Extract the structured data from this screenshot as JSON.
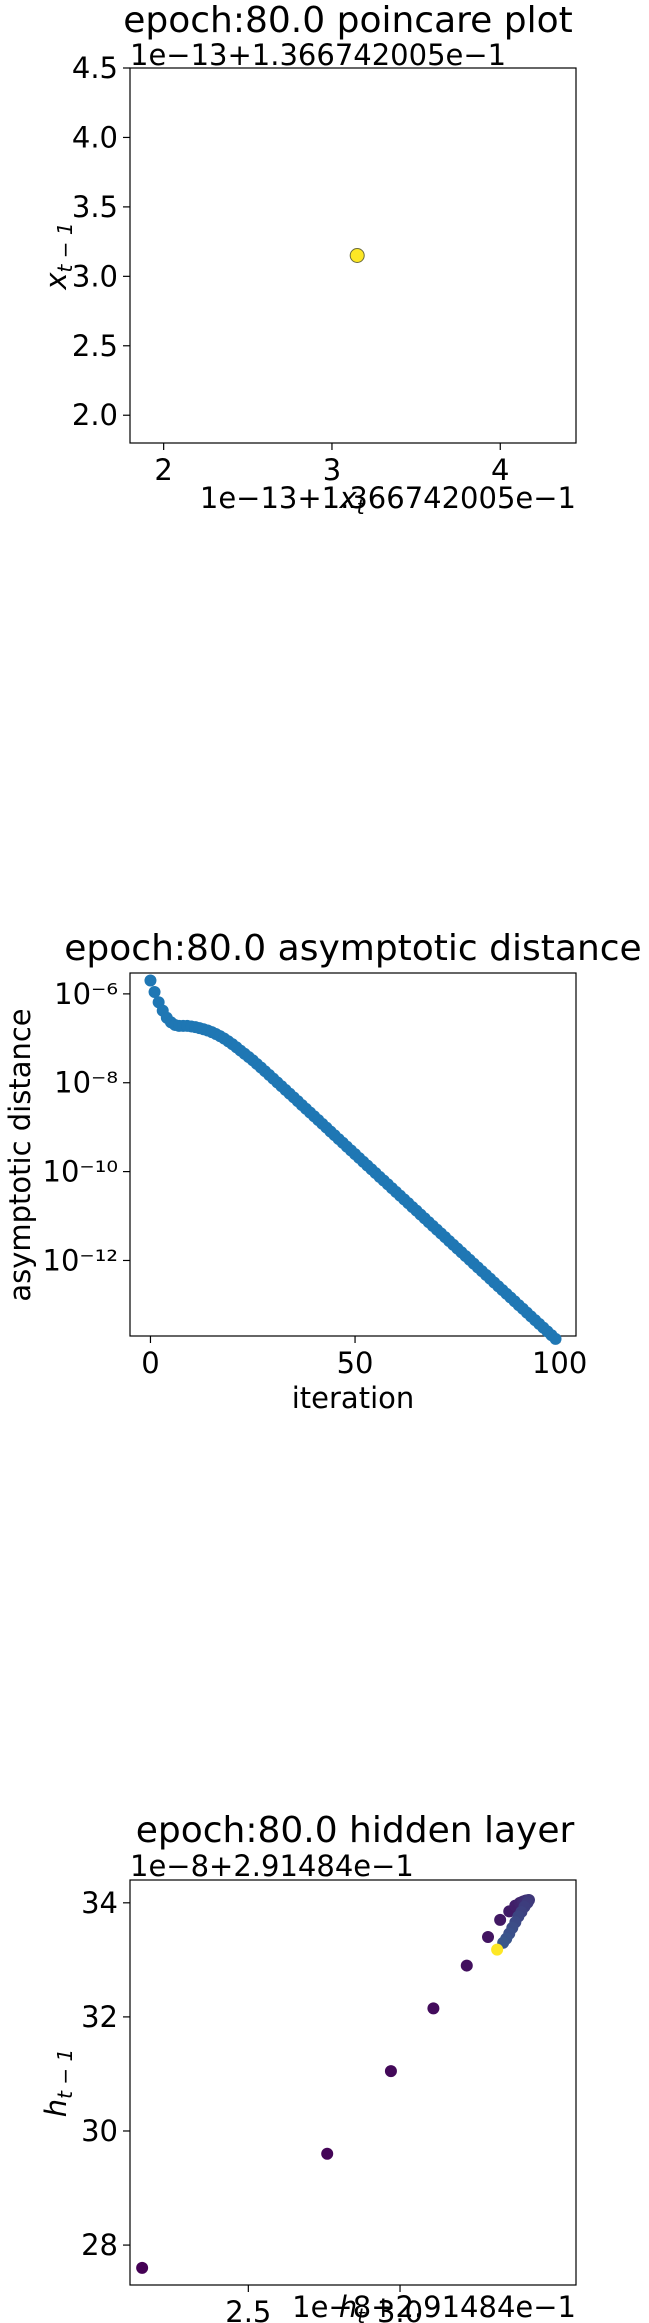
{
  "chart_data": [
    {
      "type": "scatter",
      "title": "epoch:80.0 poincare plot",
      "xlabel": "x_t",
      "ylabel": "x_{t-1}",
      "x_offset_text": "1e−13+1.366742005e−1",
      "y_offset_text": "1e−13+1.366742005e−1",
      "x_ticks": [
        "2",
        "3",
        "4"
      ],
      "y_ticks": [
        "2.0",
        "2.5",
        "3.0",
        "3.5",
        "4.0",
        "4.5"
      ],
      "xlim": [
        1.8,
        4.45
      ],
      "ylim": [
        1.8,
        4.5
      ],
      "points": [
        [
          3.15,
          3.15
        ]
      ],
      "point_color": "#fde725",
      "grid": false
    },
    {
      "type": "scatter",
      "title": "epoch:80.0 asymptotic distance",
      "xlabel": "iteration",
      "ylabel": "asymptotic distance",
      "x_ticks": [
        "0",
        "50",
        "100"
      ],
      "y_ticks": [
        "10⁻⁶",
        "10⁻⁸",
        "10⁻¹⁰",
        "10⁻¹²"
      ],
      "xlim": [
        -5,
        104
      ],
      "ylim": [
        -13.7,
        -5.53
      ],
      "yscale": "log",
      "series": [
        {
          "x_range": [
            0,
            99
          ],
          "y": [
            2e-06,
            1.1e-06,
            6.5e-07,
            4.2e-07,
            2.9e-07,
            2.3e-07,
            2e-07,
            1.9e-07,
            1.9e-07,
            1.9e-07,
            1.85e-07,
            1.78e-07,
            1.7e-07,
            1.6e-07,
            1.5e-07,
            1.38e-07,
            1.25e-07,
            1.12e-07,
            9.9e-08,
            8.6e-08,
            7.4e-08,
            6.3e-08,
            5.3e-08,
            4.5e-08,
            3.8e-08,
            3.2e-08,
            2.65e-08,
            2.2e-08,
            1.82e-08,
            1.5e-08,
            1.24e-08,
            1.02e-08,
            8.4e-09,
            6.9e-09,
            5.7e-09,
            4.7e-09,
            3.85e-09,
            3.16e-09,
            2.6e-09,
            2.14e-09,
            1.76e-09,
            1.45e-09,
            1.19e-09,
            9.8e-10,
            8e-10,
            6.6e-10,
            5.4e-10,
            4.45e-10,
            3.65e-10,
            3e-10,
            2.47e-10,
            2.03e-10,
            1.67e-10,
            1.37e-10,
            1.13e-10,
            9.3e-11,
            7.6e-11,
            6.3e-11,
            5.2e-11,
            4.25e-11,
            3.5e-11,
            2.88e-11,
            2.37e-11,
            1.95e-11,
            1.6e-11,
            1.32e-11,
            1.08e-11,
            8.9e-12,
            7.3e-12,
            6e-12,
            4.95e-12,
            4.07e-12,
            3.35e-12,
            2.75e-12,
            2.26e-12,
            1.86e-12,
            1.53e-12,
            1.26e-12,
            1.04e-12,
            8.5e-13,
            7e-13,
            5.75e-13,
            4.73e-13,
            3.9e-13,
            3.2e-13,
            2.63e-13,
            2.17e-13,
            1.78e-13,
            1.47e-13,
            1.21e-13,
            9.9e-14,
            8.2e-14,
            6.7e-14,
            5.5e-14,
            4.55e-14,
            3.75e-14,
            3.08e-14,
            2.54e-14,
            2.09e-14,
            1.72e-14
          ]
        }
      ],
      "point_color": "#1f77b4",
      "grid": false
    },
    {
      "type": "scatter",
      "title": "epoch:80.0 hidden layer",
      "xlabel": "h_t",
      "ylabel": "h_{t-1}",
      "x_offset_text": "1e−8+2.91484e−1",
      "y_offset_text": "1e−8+2.91484e−1",
      "x_ticks": [
        "2.5",
        "3.0"
      ],
      "y_ticks": [
        "28",
        "30",
        "32",
        "34"
      ],
      "xlim": [
        2.11,
        3.58
      ],
      "ylim": [
        27.3,
        34.4
      ],
      "points": [
        [
          2.15,
          27.6
        ],
        [
          2.76,
          29.6
        ],
        [
          2.97,
          31.05
        ],
        [
          3.11,
          32.15
        ],
        [
          3.22,
          32.9
        ],
        [
          3.29,
          33.4
        ],
        [
          3.33,
          33.7
        ],
        [
          3.36,
          33.85
        ],
        [
          3.38,
          33.95
        ],
        [
          3.395,
          34.0
        ],
        [
          3.405,
          34.02
        ],
        [
          3.41,
          34.03
        ],
        [
          3.415,
          34.04
        ],
        [
          3.42,
          34.045
        ],
        [
          3.425,
          34.05
        ],
        [
          3.42,
          34.0
        ],
        [
          3.41,
          33.93
        ],
        [
          3.4,
          33.84
        ],
        [
          3.39,
          33.76
        ],
        [
          3.38,
          33.66
        ],
        [
          3.37,
          33.56
        ],
        [
          3.36,
          33.46
        ],
        [
          3.35,
          33.37
        ],
        [
          3.34,
          33.3
        ],
        [
          3.32,
          33.18
        ]
      ],
      "colormap": "viridis",
      "grid": false
    }
  ]
}
